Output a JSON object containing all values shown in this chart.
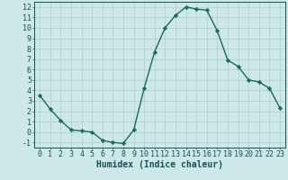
{
  "x": [
    0,
    1,
    2,
    3,
    4,
    5,
    6,
    7,
    8,
    9,
    10,
    11,
    12,
    13,
    14,
    15,
    16,
    17,
    18,
    19,
    20,
    21,
    22,
    23
  ],
  "y": [
    3.5,
    2.2,
    1.1,
    0.2,
    0.1,
    0.0,
    -0.8,
    -1.0,
    -1.1,
    0.2,
    4.2,
    7.7,
    10.0,
    11.2,
    12.0,
    11.8,
    11.7,
    9.7,
    6.9,
    6.3,
    5.0,
    4.8,
    4.2,
    2.3
  ],
  "line_color": "#1a6b5a",
  "marker": "D",
  "marker_size": 2.2,
  "linewidth": 1.0,
  "xlabel": "Humidex (Indice chaleur)",
  "xlim": [
    -0.5,
    23.5
  ],
  "ylim": [
    -1.5,
    12.5
  ],
  "yticks": [
    -1,
    0,
    1,
    2,
    3,
    4,
    5,
    6,
    7,
    8,
    9,
    10,
    11,
    12
  ],
  "xtick_labels": [
    "0",
    "1",
    "2",
    "3",
    "4",
    "5",
    "6",
    "7",
    "8",
    "9",
    "10",
    "11",
    "12",
    "13",
    "14",
    "15",
    "16",
    "17",
    "18",
    "19",
    "20",
    "21",
    "22",
    "23"
  ],
  "grid_color": "#b0cece",
  "bg_color": "#cce8e8",
  "font_color": "#1a5050",
  "tick_fontsize": 6.0,
  "xlabel_fontsize": 7.0,
  "xlabel_fontweight": "bold"
}
